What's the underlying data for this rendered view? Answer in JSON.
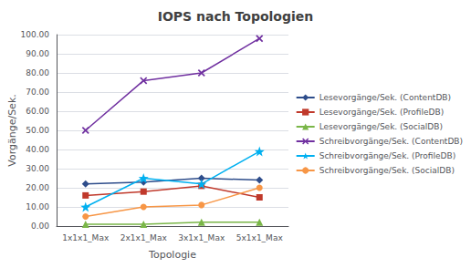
{
  "chart_data": {
    "type": "line",
    "title": "IOPS nach Topologien",
    "xlabel": "Topologie",
    "ylabel": "Vorgänge/Sek.",
    "categories": [
      "1x1x1_Max",
      "2x1x1_Max",
      "3x1x1_Max",
      "5x1x1_Max"
    ],
    "ylim": [
      0,
      100
    ],
    "yticks": [
      {
        "value": 0,
        "label": "0.00"
      },
      {
        "value": 10,
        "label": "10.00"
      },
      {
        "value": 20,
        "label": "20.00"
      },
      {
        "value": 30,
        "label": "30.00"
      },
      {
        "value": 40,
        "label": "40.00"
      },
      {
        "value": 50,
        "label": "50.00"
      },
      {
        "value": 60,
        "label": "60.00"
      },
      {
        "value": 70,
        "label": "70.00"
      },
      {
        "value": 80,
        "label": "80.00"
      },
      {
        "value": 90,
        "label": "90.00"
      },
      {
        "value": 100,
        "label": "100.00"
      }
    ],
    "series": [
      {
        "name": "Lesevorgänge/Sek. (ContentDB)",
        "values": [
          22,
          23,
          25,
          24
        ],
        "color": "#2E4D8B",
        "marker": "diamond"
      },
      {
        "name": "Lesevorgänge/Sek. (ProfileDB)",
        "values": [
          16,
          18,
          21,
          15
        ],
        "color": "#C0392B",
        "marker": "square"
      },
      {
        "name": "Lesevorgänge/Sek. (SocialDB)",
        "values": [
          1,
          1,
          2,
          2
        ],
        "color": "#7AB648",
        "marker": "triangle"
      },
      {
        "name": "Schreibvorgänge/Sek. (ContentDB)",
        "values": [
          50,
          76,
          80,
          98
        ],
        "color": "#7030A0",
        "marker": "x"
      },
      {
        "name": "Schreibvorgänge/Sek. (ProfileDB)",
        "values": [
          10,
          25,
          22,
          39
        ],
        "color": "#00B0F0",
        "marker": "star"
      },
      {
        "name": "Schreibvorgänge/Sek. (SocialDB)",
        "values": [
          5,
          10,
          11,
          20
        ],
        "color": "#F79646",
        "marker": "circle"
      }
    ],
    "grid": true,
    "legend": "right"
  }
}
